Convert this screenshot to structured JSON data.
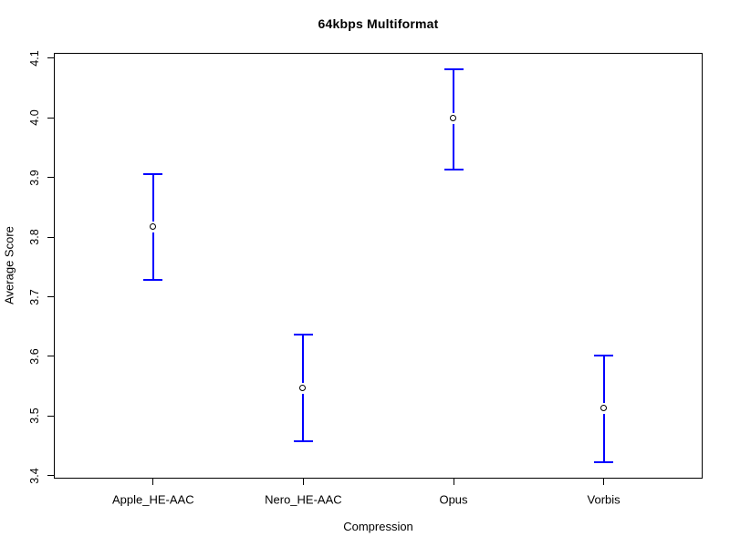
{
  "chart_data": {
    "type": "errorbar",
    "title": "64kbps Multiformat",
    "xlabel": "Compression",
    "ylabel": "Average Score",
    "categories": [
      "Apple_HE-AAC",
      "Nero_HE-AAC",
      "Opus",
      "Vorbis"
    ],
    "series": [
      {
        "name": "Average Score",
        "values": [
          3.817,
          3.546,
          3.999,
          3.512
        ],
        "ci_low": [
          3.729,
          3.457,
          3.913,
          3.423
        ],
        "ci_high": [
          3.905,
          3.637,
          4.082,
          3.601
        ]
      }
    ],
    "yticks": [
      3.4,
      3.5,
      3.6,
      3.7,
      3.8,
      3.9,
      4.0,
      4.1
    ],
    "ylim": [
      3.395,
      4.109
    ],
    "grid": false,
    "legend": false,
    "bar_color": "#0000FF",
    "point_color": "#000000",
    "background_color": "#FFFFFF",
    "axis_color": "#000000"
  }
}
